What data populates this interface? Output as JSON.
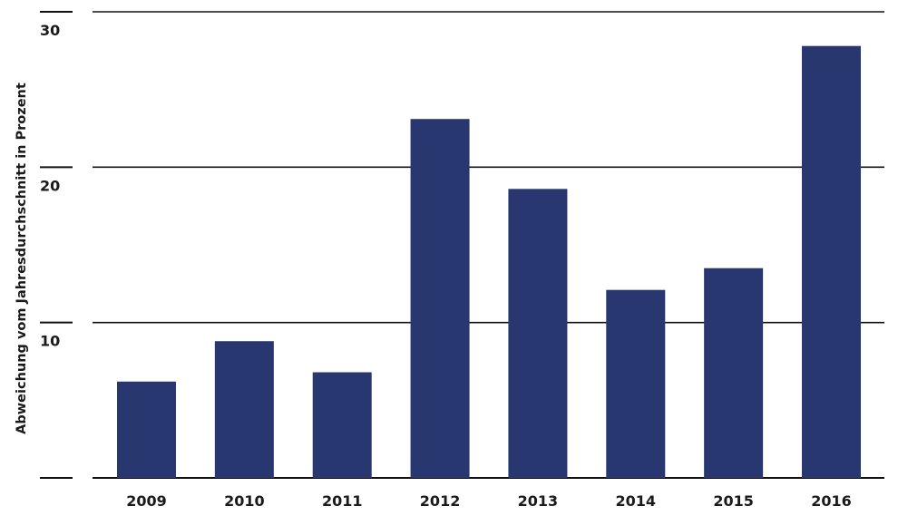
{
  "chart_data": {
    "type": "bar",
    "title": "",
    "xlabel": "",
    "ylabel": "Abweichung vom Jahresdurchschnitt in Prozent",
    "categories": [
      "2009",
      "2010",
      "2011",
      "2012",
      "2013",
      "2014",
      "2015",
      "2016"
    ],
    "values": [
      6.2,
      8.8,
      6.8,
      23.1,
      18.6,
      12.1,
      13.5,
      27.8
    ],
    "ylim": [
      0,
      30
    ],
    "yticks": [
      10,
      20,
      30
    ],
    "grid": true,
    "legend": "none",
    "colors": {
      "bar": "#283770",
      "grid": "#111111",
      "text": "#1a1a1a"
    }
  }
}
